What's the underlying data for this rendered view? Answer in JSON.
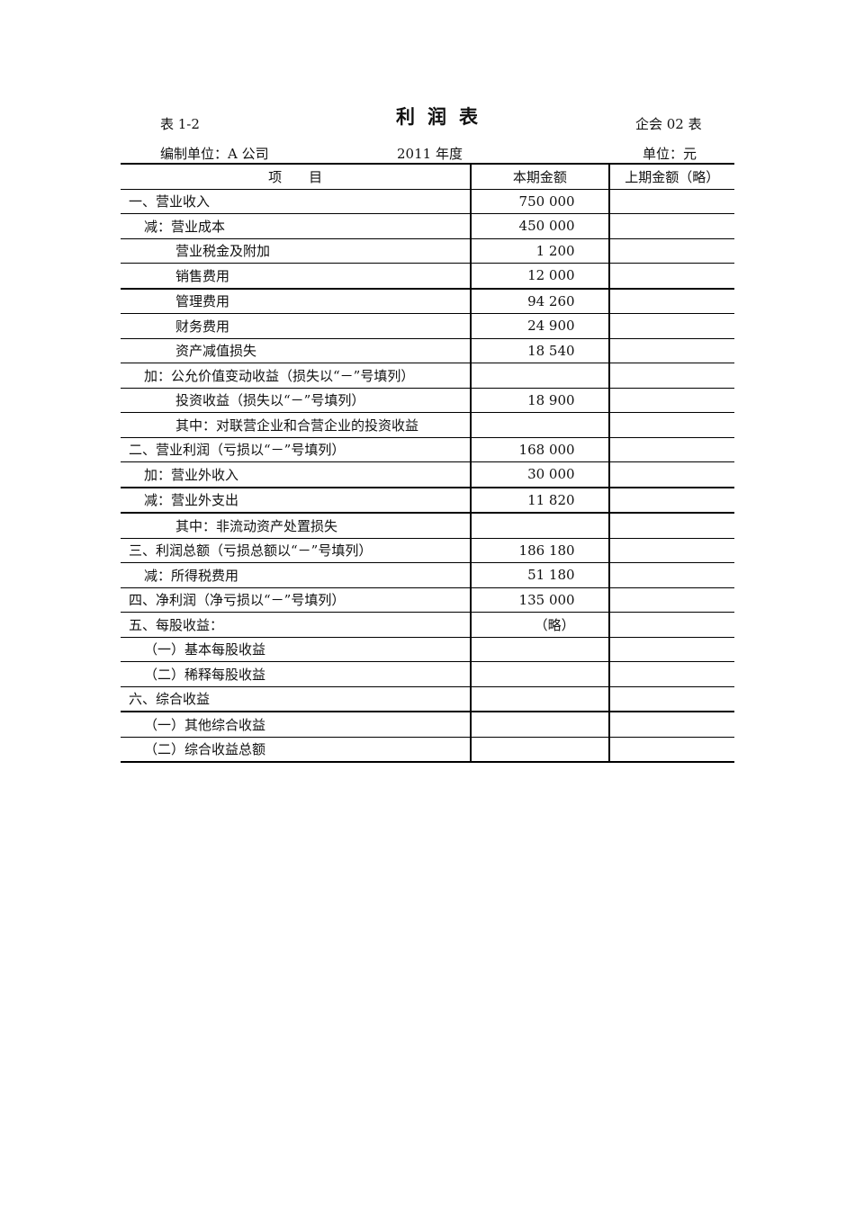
{
  "header": {
    "table_no": "表 1-2",
    "title": "利润表",
    "form_code": "企会 02 表",
    "preparer": "编制单位：A 公司",
    "period": "2011 年度",
    "unit": "单位：元"
  },
  "columns": [
    "项　　目",
    "本期金额",
    "上期金额（略）"
  ],
  "rows": [
    {
      "item": "一、营业收入",
      "current": "750 000",
      "level": 0
    },
    {
      "item": "减：营业成本",
      "current": "450 000",
      "level": 1
    },
    {
      "item": "营业税金及附加",
      "current": "1 200",
      "level": 2
    },
    {
      "item": "销售费用",
      "current": "12 000",
      "level": 2
    },
    {
      "item": "管理费用",
      "current": "94 260",
      "level": 2
    },
    {
      "item": "财务费用",
      "current": "24 900",
      "level": 2
    },
    {
      "item": "资产减值损失",
      "current": "18 540",
      "level": 2
    },
    {
      "item": "加：公允价值变动收益（损失以“－”号填列）",
      "current": "",
      "level": 1
    },
    {
      "item": "投资收益（损失以“－”号填列）",
      "current": "18 900",
      "level": 2
    },
    {
      "item": "其中：对联营企业和合营企业的投资收益",
      "current": "",
      "level": 2
    },
    {
      "item": "二、营业利润（亏损以“－”号填列）",
      "current": "168 000",
      "level": 0
    },
    {
      "item": "加：营业外收入",
      "current": "30 000",
      "level": 1
    },
    {
      "item": "减：营业外支出",
      "current": "11 820",
      "level": 1
    },
    {
      "item": "其中：非流动资产处置损失",
      "current": "",
      "level": 2
    },
    {
      "item": "三、利润总额（亏损总额以“－”号填列）",
      "current": "186 180",
      "level": 0
    },
    {
      "item": "减：所得税费用",
      "current": "51 180",
      "level": 1
    },
    {
      "item": "四、净利润（净亏损以“－”号填列）",
      "current": "135 000",
      "level": 0
    },
    {
      "item": "五、每股收益：",
      "current": "（略）",
      "level": 0
    },
    {
      "item": "（一）基本每股收益",
      "current": "",
      "level": 1
    },
    {
      "item": "（二）稀释每股收益",
      "current": "",
      "level": 1
    },
    {
      "item": "六、综合收益",
      "current": "",
      "level": 0
    },
    {
      "item": "（一）其他综合收益",
      "current": "",
      "level": 1
    },
    {
      "item": "（二）综合收益总额",
      "current": "",
      "level": 1
    }
  ]
}
